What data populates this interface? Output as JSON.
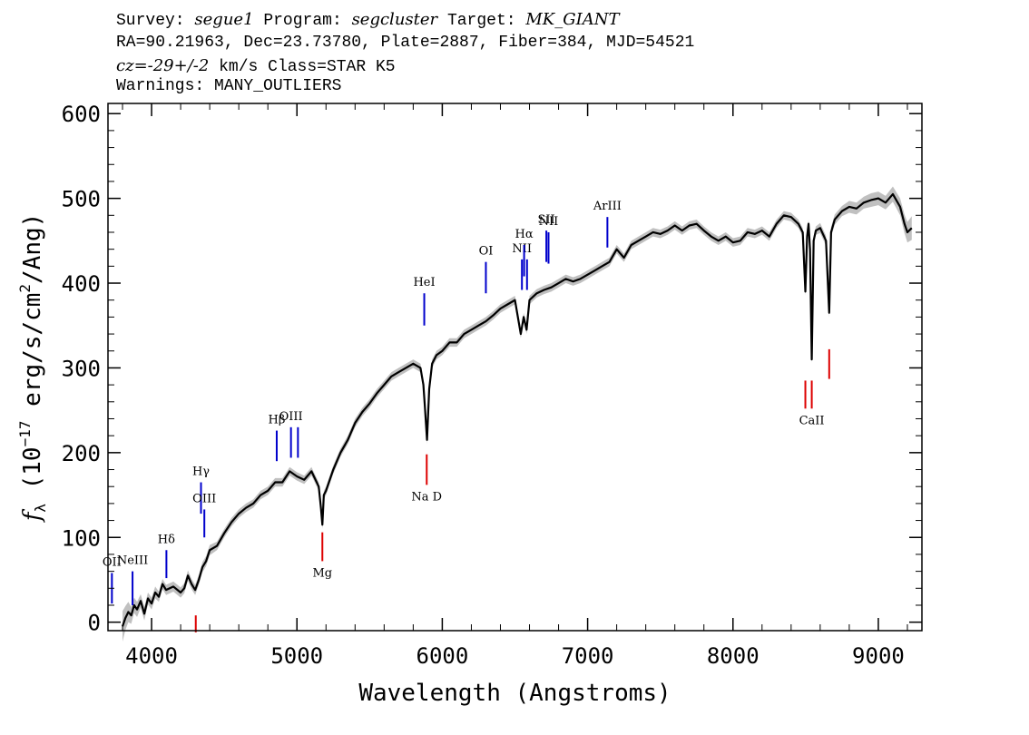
{
  "header": {
    "line1": {
      "survey_label": "Survey: ",
      "survey": "segue1",
      "program_label": " Program: ",
      "program": "segcluster",
      "target_label": " Target: ",
      "target": "MK_GIANT"
    },
    "line2": "RA=90.21963, Dec=23.73780, Plate=2887, Fiber=384, MJD=54521",
    "line3": {
      "cz": "cz=-29+/-2",
      "rest": " km/s Class=STAR K5"
    },
    "line4": "Warnings: MANY_OUTLIERS"
  },
  "chart_data": {
    "type": "line",
    "title": "",
    "xlabel": "Wavelength (Angstroms)",
    "ylabel": "f_λ (10^-17 erg/s/cm^2/Ang)",
    "ylabel_parts": {
      "f": "f",
      "sub": "λ",
      "pre": " (10",
      "exp1": "−17",
      "mid": " erg/s/cm",
      "exp2": "2",
      "post": "/Ang)"
    },
    "xlim": [
      3700,
      9300
    ],
    "ylim": [
      -10,
      612
    ],
    "xticks": [
      4000,
      5000,
      6000,
      7000,
      8000,
      9000
    ],
    "yticks": [
      0,
      100,
      200,
      300,
      400,
      500,
      600
    ],
    "grid": false,
    "series": [
      {
        "color": "#000000",
        "error_band_color": "#b0b0b0",
        "x": [
          3800,
          3820,
          3840,
          3860,
          3880,
          3900,
          3925,
          3950,
          3975,
          4000,
          4025,
          4050,
          4075,
          4100,
          4150,
          4200,
          4225,
          4250,
          4275,
          4300,
          4325,
          4350,
          4375,
          4400,
          4450,
          4500,
          4550,
          4600,
          4650,
          4700,
          4750,
          4800,
          4850,
          4900,
          4950,
          5000,
          5050,
          5100,
          5150,
          5165,
          5175,
          5185,
          5200,
          5250,
          5300,
          5350,
          5400,
          5450,
          5500,
          5550,
          5600,
          5650,
          5700,
          5750,
          5800,
          5850,
          5870,
          5880,
          5895,
          5910,
          5930,
          5960,
          6000,
          6050,
          6100,
          6150,
          6200,
          6250,
          6300,
          6350,
          6400,
          6450,
          6500,
          6540,
          6560,
          6580,
          6600,
          6650,
          6700,
          6750,
          6800,
          6850,
          6900,
          6950,
          7000,
          7050,
          7100,
          7150,
          7200,
          7250,
          7300,
          7350,
          7400,
          7450,
          7500,
          7550,
          7600,
          7650,
          7700,
          7750,
          7800,
          7850,
          7900,
          7950,
          8000,
          8050,
          8100,
          8150,
          8200,
          8250,
          8300,
          8350,
          8400,
          8450,
          8480,
          8498,
          8510,
          8520,
          8530,
          8542,
          8555,
          8570,
          8600,
          8640,
          8662,
          8675,
          8700,
          8750,
          8800,
          8850,
          8900,
          8950,
          9000,
          9050,
          9100,
          9150,
          9180,
          9200,
          9230
        ],
        "values": [
          -5,
          5,
          12,
          8,
          20,
          15,
          25,
          10,
          28,
          22,
          35,
          30,
          45,
          38,
          42,
          35,
          40,
          55,
          45,
          38,
          50,
          65,
          72,
          85,
          90,
          105,
          118,
          128,
          135,
          140,
          150,
          155,
          165,
          165,
          178,
          172,
          168,
          178,
          160,
          135,
          115,
          150,
          155,
          180,
          200,
          215,
          235,
          248,
          258,
          270,
          280,
          290,
          295,
          300,
          305,
          300,
          280,
          255,
          215,
          275,
          305,
          315,
          320,
          330,
          330,
          340,
          345,
          350,
          355,
          362,
          370,
          375,
          380,
          340,
          360,
          345,
          380,
          388,
          392,
          395,
          400,
          405,
          402,
          405,
          410,
          415,
          420,
          425,
          440,
          430,
          445,
          450,
          455,
          460,
          458,
          462,
          468,
          462,
          468,
          470,
          462,
          455,
          450,
          455,
          448,
          450,
          460,
          458,
          462,
          455,
          470,
          480,
          478,
          470,
          460,
          390,
          455,
          470,
          440,
          310,
          450,
          462,
          465,
          450,
          365,
          460,
          475,
          485,
          490,
          488,
          495,
          498,
          500,
          495,
          505,
          490,
          470,
          460,
          465
        ],
        "errors": [
          18,
          14,
          12,
          10,
          9,
          9,
          8,
          8,
          7,
          7,
          7,
          6,
          6,
          6,
          6,
          6,
          6,
          6,
          6,
          6,
          6,
          6,
          6,
          6,
          5,
          5,
          5,
          5,
          5,
          5,
          5,
          5,
          5,
          5,
          5,
          5,
          5,
          5,
          5,
          5,
          5,
          5,
          5,
          5,
          5,
          5,
          5,
          5,
          5,
          5,
          5,
          5,
          5,
          5,
          5,
          5,
          5,
          5,
          5,
          5,
          5,
          5,
          5,
          5,
          5,
          5,
          5,
          5,
          5,
          5,
          5,
          5,
          5,
          5,
          5,
          5,
          5,
          5,
          5,
          5,
          5,
          5,
          5,
          5,
          5,
          5,
          5,
          5,
          5,
          5,
          5,
          5,
          5,
          5,
          5,
          5,
          5,
          5,
          5,
          5,
          5,
          5,
          5,
          5,
          5,
          5,
          5,
          5,
          5,
          5,
          5,
          5,
          5,
          5,
          5,
          5,
          5,
          5,
          5,
          5,
          5,
          5,
          6,
          6,
          6,
          6,
          6,
          6,
          7,
          7,
          7,
          8,
          8,
          8,
          9,
          10,
          11,
          12,
          14
        ]
      }
    ],
    "emission_lines": [
      {
        "label": "OII",
        "wavelength": 3727,
        "y0": 22,
        "y1": 58,
        "color": "#0000cc"
      },
      {
        "label": "NeIII",
        "wavelength": 3869,
        "y0": 20,
        "y1": 60,
        "color": "#0000cc"
      },
      {
        "label": "Hδ",
        "wavelength": 4102,
        "y0": 52,
        "y1": 85,
        "color": "#0000cc"
      },
      {
        "label": "Hγ",
        "wavelength": 4340,
        "y0": 128,
        "y1": 165,
        "color": "#0000cc"
      },
      {
        "label": "OIII",
        "wavelength": 4363,
        "y0": 100,
        "y1": 133,
        "color": "#0000cc"
      },
      {
        "label": "Hβ",
        "wavelength": 4861,
        "y0": 190,
        "y1": 226,
        "color": "#0000cc"
      },
      {
        "label": "OIII",
        "wavelength": 4959,
        "y0": 194,
        "y1": 230,
        "color": "#0000cc"
      },
      {
        "label": "",
        "wavelength": 5007,
        "y0": 194,
        "y1": 230,
        "color": "#0000cc"
      },
      {
        "label": "HeI",
        "wavelength": 5876,
        "y0": 350,
        "y1": 388,
        "color": "#0000cc"
      },
      {
        "label": "OI",
        "wavelength": 6300,
        "y0": 388,
        "y1": 425,
        "color": "#0000cc"
      },
      {
        "label": "NII",
        "wavelength": 6548,
        "y0": 392,
        "y1": 428,
        "color": "#0000cc"
      },
      {
        "label": "Hα",
        "wavelength": 6563,
        "y0": 408,
        "y1": 445,
        "color": "#0000cc"
      },
      {
        "label": "",
        "wavelength": 6583,
        "y0": 392,
        "y1": 428,
        "color": "#0000cc"
      },
      {
        "label": "SII",
        "wavelength": 6716,
        "y0": 425,
        "y1": 462,
        "color": "#0000cc"
      },
      {
        "label": "NII",
        "wavelength": 6731,
        "y0": 423,
        "y1": 460,
        "color": "#0000cc"
      },
      {
        "label": "ArIII",
        "wavelength": 7136,
        "y0": 442,
        "y1": 478,
        "color": "#0000cc"
      }
    ],
    "absorption_lines": [
      {
        "label": "",
        "wavelength": 4304,
        "y0": -12,
        "y1": 8,
        "color": "#dd0000"
      },
      {
        "label": "Mg",
        "wavelength": 5175,
        "y0": 72,
        "y1": 106,
        "color": "#dd0000"
      },
      {
        "label": "Na D",
        "wavelength": 5893,
        "y0": 162,
        "y1": 198,
        "color": "#dd0000"
      },
      {
        "label": "",
        "wavelength": 8498,
        "y0": 252,
        "y1": 285,
        "color": "#dd0000"
      },
      {
        "label": "CaII",
        "wavelength": 8542,
        "y0": 252,
        "y1": 285,
        "color": "#dd0000"
      },
      {
        "label": "",
        "wavelength": 8662,
        "y0": 287,
        "y1": 322,
        "color": "#dd0000"
      }
    ]
  }
}
